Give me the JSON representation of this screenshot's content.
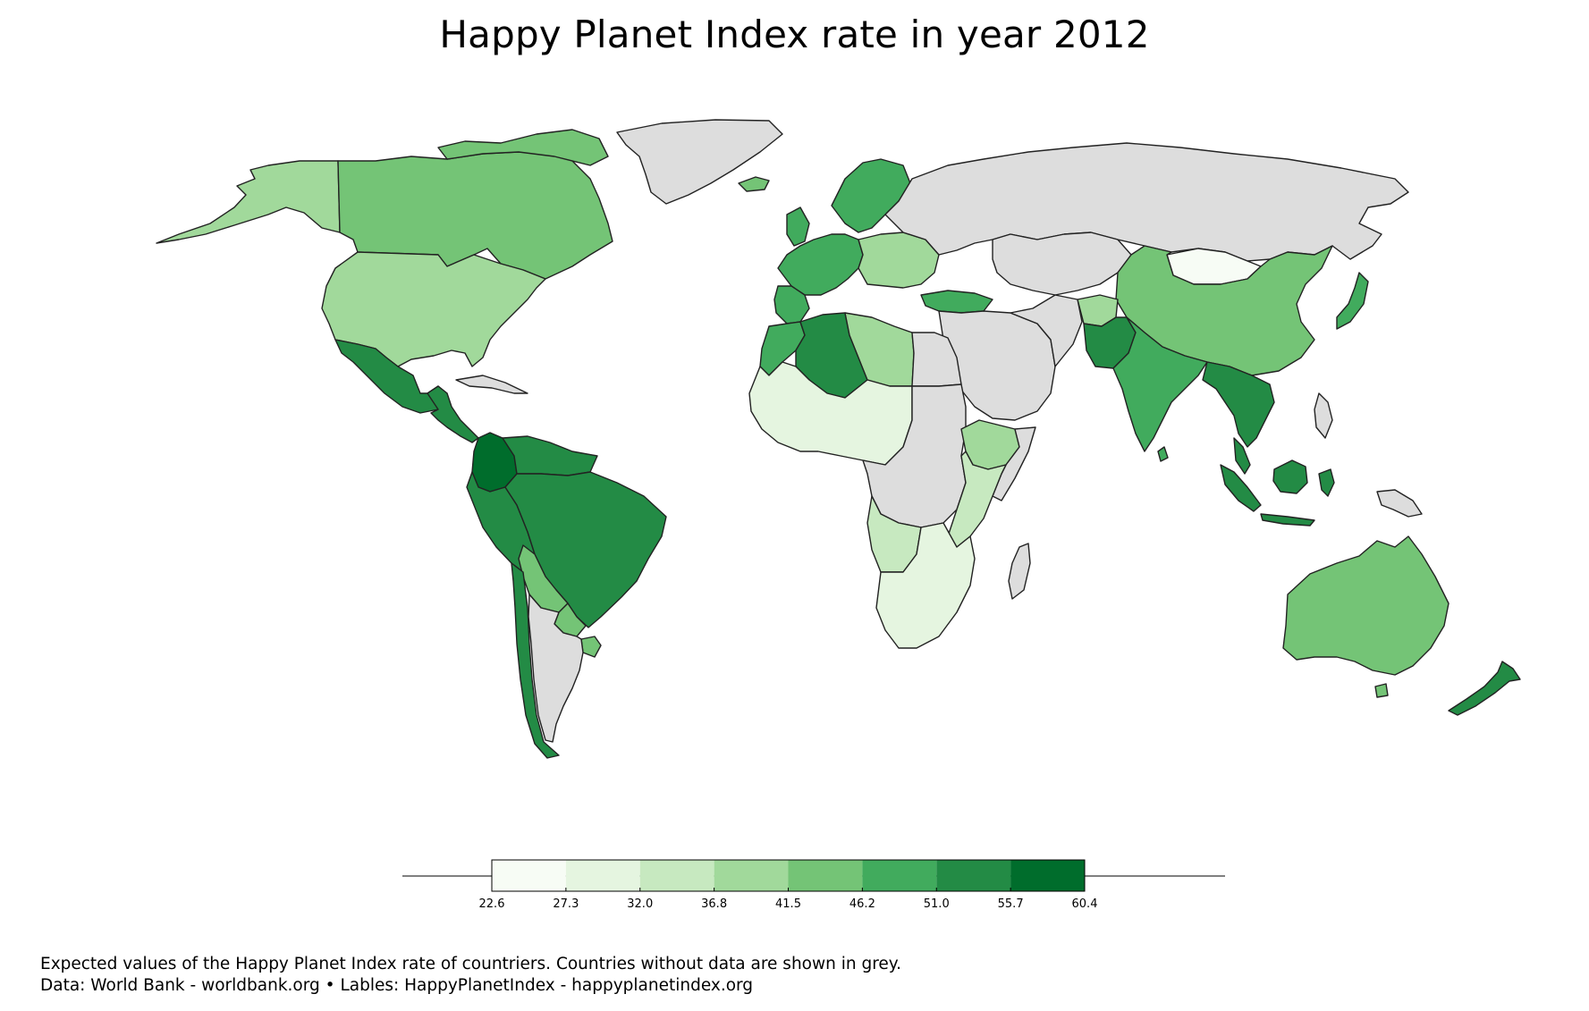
{
  "title": "Happy Planet Index rate in year 2012",
  "legend": {
    "ticks": [
      "22.6",
      "27.3",
      "32.0",
      "36.8",
      "41.5",
      "46.2",
      "51.0",
      "55.7",
      "60.4"
    ],
    "colors": [
      "#f7fcf5",
      "#e5f5e0",
      "#c7e9c0",
      "#a1d99b",
      "#74c476",
      "#41ab5d",
      "#238b45",
      "#006d2c"
    ],
    "no_data_color": "#dddddd"
  },
  "caption": {
    "line1": "Expected values of the Happy Planet Index rate of countriers. Countries without data are shown in grey.",
    "line2": "Data: World Bank - worldbank.org • Lables: HappyPlanetIndex - happyplanetindex.org"
  },
  "map_data": {
    "projection": "robinson",
    "regions": [
      {
        "name": "Alaska",
        "bin": 3
      },
      {
        "name": "Canada",
        "bin": 4
      },
      {
        "name": "United States",
        "bin": 3
      },
      {
        "name": "Greenland",
        "bin": -1
      },
      {
        "name": "Mexico",
        "bin": 6
      },
      {
        "name": "Central America",
        "bin": 6
      },
      {
        "name": "Colombia",
        "bin": 7
      },
      {
        "name": "Venezuela",
        "bin": 6
      },
      {
        "name": "Peru",
        "bin": 6
      },
      {
        "name": "Brazil",
        "bin": 6
      },
      {
        "name": "Bolivia",
        "bin": 4
      },
      {
        "name": "Paraguay",
        "bin": 4
      },
      {
        "name": "Chile",
        "bin": 6
      },
      {
        "name": "Argentina",
        "bin": -1
      },
      {
        "name": "Uruguay",
        "bin": 4
      },
      {
        "name": "Iceland",
        "bin": 4
      },
      {
        "name": "Western Europe",
        "bin": 5
      },
      {
        "name": "Northern Europe",
        "bin": 5
      },
      {
        "name": "Eastern Europe",
        "bin": 3
      },
      {
        "name": "Russia",
        "bin": -1
      },
      {
        "name": "Kazakhstan",
        "bin": -1
      },
      {
        "name": "Mongolia",
        "bin": 0
      },
      {
        "name": "China",
        "bin": 4
      },
      {
        "name": "Japan",
        "bin": 5
      },
      {
        "name": "Middle East",
        "bin": -1
      },
      {
        "name": "Turkey",
        "bin": 5
      },
      {
        "name": "Afghanistan",
        "bin": 3
      },
      {
        "name": "Pakistan",
        "bin": 6
      },
      {
        "name": "India",
        "bin": 5
      },
      {
        "name": "Southeast Asia",
        "bin": 6
      },
      {
        "name": "Indonesia",
        "bin": 6
      },
      {
        "name": "Papua New Guinea",
        "bin": -1
      },
      {
        "name": "Australia",
        "bin": 4
      },
      {
        "name": "New Zealand",
        "bin": 6
      },
      {
        "name": "Morocco",
        "bin": 5
      },
      {
        "name": "Algeria",
        "bin": 6
      },
      {
        "name": "Libya",
        "bin": 3
      },
      {
        "name": "Egypt",
        "bin": -1
      },
      {
        "name": "Sahel West Africa",
        "bin": 1
      },
      {
        "name": "Central Africa",
        "bin": -1
      },
      {
        "name": "Ethiopia",
        "bin": 3
      },
      {
        "name": "East Africa",
        "bin": 2
      },
      {
        "name": "Angola",
        "bin": 2
      },
      {
        "name": "Southern Africa",
        "bin": 1
      },
      {
        "name": "Madagascar",
        "bin": -1
      }
    ]
  }
}
